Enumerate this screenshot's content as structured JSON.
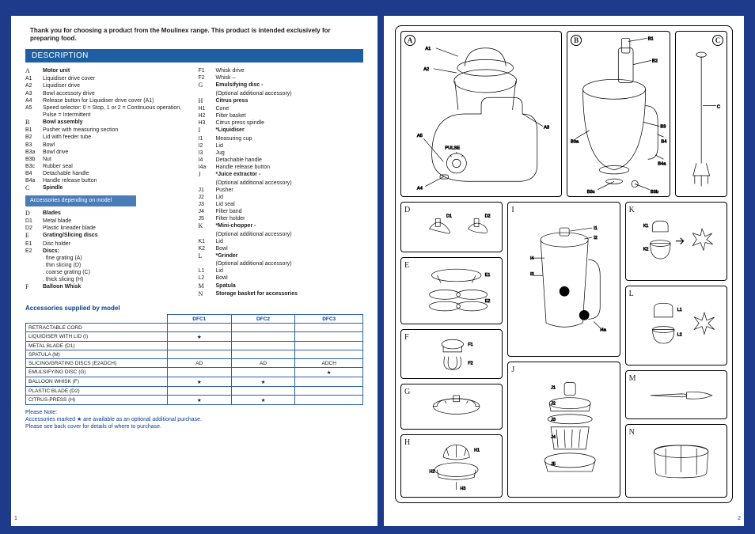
{
  "intro": "Thank you for choosing a product from the Moulinex range. This product is intended exclusively for preparing food.",
  "section_title": "Description",
  "accessories_depending_header": "Accessories depending on model",
  "col1": [
    {
      "code": "A",
      "text": "Motor unit",
      "bold": true,
      "serif": true
    },
    {
      "code": "A1",
      "text": "Liquidiser drive cover"
    },
    {
      "code": "A2",
      "text": "Liquidiser drive"
    },
    {
      "code": "A3",
      "text": "Bowl accessory drive"
    },
    {
      "code": "A4",
      "text": "Release button for Liquidiser drive cover (A1)"
    },
    {
      "code": "A5",
      "text": "Speed selector: 0 = Stop, 1 or 2 = Continuous operation, Pulse = Intermittent"
    },
    {
      "code": "B",
      "text": "Bowl assembly",
      "bold": true,
      "serif": true
    },
    {
      "code": "B1",
      "text": "Pusher with measuring section"
    },
    {
      "code": "B2",
      "text": "Lid with feeder tube"
    },
    {
      "code": "B3",
      "text": "Bowl"
    },
    {
      "code": "B3a",
      "text": "Bowl drive"
    },
    {
      "code": "B3b",
      "text": "Nut"
    },
    {
      "code": "B3c",
      "text": "Rubber seal"
    },
    {
      "code": "B4",
      "text": "Detachable handle"
    },
    {
      "code": "B4a",
      "text": "Handle release button"
    },
    {
      "code": "C",
      "text": "Spindle",
      "bold": true,
      "serif": true
    }
  ],
  "col1b": [
    {
      "code": "D",
      "text": "Blades",
      "bold": true,
      "serif": true
    },
    {
      "code": "D1",
      "text": "Metal blade"
    },
    {
      "code": "D2",
      "text": "Plastic kneader blade"
    },
    {
      "code": "E",
      "text": "Grating/Slicing discs",
      "bold": true,
      "serif": true
    },
    {
      "code": "E1",
      "text": "Disc holder"
    },
    {
      "code": "E2",
      "text": "Discs:",
      "bold": true
    }
  ],
  "disc_variants": [
    ". fine grating (A)",
    ". thin slicing (D)",
    ". coarse grating (C)",
    ". thick slicing (H)"
  ],
  "col1c": [
    {
      "code": "F",
      "text": "Balloon Whisk",
      "bold": true,
      "serif": true
    }
  ],
  "col2": [
    {
      "code": "F1",
      "text": "Whisk drive"
    },
    {
      "code": "F2",
      "text": "Whisk –"
    },
    {
      "code": "G",
      "text": "Emulsifying disc -",
      "bold": true,
      "serif": true
    },
    {
      "code": "",
      "text": "(Optional additional accessory)"
    },
    {
      "code": "H",
      "text": "Citrus press",
      "bold": true,
      "serif": true
    },
    {
      "code": "H1",
      "text": "Cone"
    },
    {
      "code": "H2",
      "text": "Filter basket"
    },
    {
      "code": "H3",
      "text": "Citrus press spindle"
    },
    {
      "code": "I",
      "text": "*Liquidiser",
      "bold": true,
      "serif": true
    },
    {
      "code": "I1",
      "text": "Measuring cup"
    },
    {
      "code": "I2",
      "text": "Lid"
    },
    {
      "code": "I3",
      "text": "Jug"
    },
    {
      "code": "I4",
      "text": "Detachable handle"
    },
    {
      "code": "I4a",
      "text": "Handle release button"
    },
    {
      "code": "J",
      "text": "*Juice extractor -",
      "bold": true,
      "serif": true
    },
    {
      "code": "",
      "text": "(Optional additional accessory)"
    },
    {
      "code": "J1",
      "text": "Pusher"
    },
    {
      "code": "J2",
      "text": "Lid"
    },
    {
      "code": "J3",
      "text": "Lid seal"
    },
    {
      "code": "J4",
      "text": "Filter band"
    },
    {
      "code": "J5",
      "text": "Filter holder"
    },
    {
      "code": "K",
      "text": "*Mini-chopper -",
      "bold": true,
      "serif": true
    },
    {
      "code": "",
      "text": "(Optional additional accessory)"
    },
    {
      "code": "K1",
      "text": "Lid"
    },
    {
      "code": "K2",
      "text": "Bowl"
    },
    {
      "code": "L",
      "text": "*Grinder",
      "bold": true,
      "serif": true
    },
    {
      "code": "",
      "text": "(Optional additional accessory)"
    },
    {
      "code": "L1",
      "text": "Lid"
    },
    {
      "code": "L2",
      "text": "Bowl"
    },
    {
      "code": "M",
      "text": "Spatula",
      "bold": true,
      "serif": true
    },
    {
      "code": "N",
      "text": "Storage basket for accessories",
      "bold": true,
      "serif": true
    }
  ],
  "model_table": {
    "title": "Accessories supplied by model",
    "columns": [
      "",
      "DFC1",
      "DFC2",
      "DFC3"
    ],
    "rows": [
      [
        "RETRACTABLE CORD",
        "",
        "",
        ""
      ],
      [
        "LIQUIDISER WITH LID (I)",
        "★",
        "",
        ""
      ],
      [
        "METAL BLADE (D1)",
        "",
        "",
        ""
      ],
      [
        "SPATULA (M)",
        "",
        "",
        ""
      ],
      [
        "SLICING/GRATING DISCS (E2ADCH)",
        "AD",
        "AD",
        "ADCH"
      ],
      [
        "EMULSIFYING DISC (G)",
        "",
        "",
        "★"
      ],
      [
        "BALLOON WHISK (F)",
        "★",
        "★",
        ""
      ],
      [
        "PLASTIC BLADE (D2)",
        "",
        "",
        ""
      ],
      [
        "CITRUS-PRESS (H)",
        "★",
        "★",
        ""
      ]
    ]
  },
  "note_line1": "Please Note:",
  "note_line2": "Accessories marked ★ are available as an optional additional purchase.",
  "note_line3": "Please see back cover for details of where to purchase.",
  "page1": "1",
  "page2": "2",
  "panel_labels": {
    "A": "A",
    "B": "B",
    "C": "C"
  },
  "cells": {
    "D": "D",
    "E": "E",
    "F": "F",
    "G": "G",
    "H": "H",
    "I": "I",
    "J": "J",
    "K": "K",
    "L": "L",
    "M": "M",
    "N": "N"
  },
  "callouts": {
    "A": [
      "A1",
      "A2",
      "A5",
      "A3",
      "A4"
    ],
    "B": [
      "B1",
      "B2",
      "B3a",
      "B3",
      "B4",
      "B4a",
      "B3c",
      "B3b"
    ],
    "C": [
      "C"
    ],
    "D": [
      "D1",
      "D2"
    ],
    "E": [
      "E1",
      "E2"
    ],
    "F": [
      "F1",
      "F2"
    ],
    "H": [
      "H1",
      "H2",
      "H3"
    ],
    "I": [
      "I1",
      "I2",
      "I3",
      "I4",
      "I4a"
    ],
    "J": [
      "J1",
      "J2",
      "J3",
      "J4",
      "J5"
    ],
    "K": [
      "K1",
      "K2"
    ],
    "L": [
      "L1",
      "L2"
    ]
  },
  "pulse_text": "PULSE"
}
